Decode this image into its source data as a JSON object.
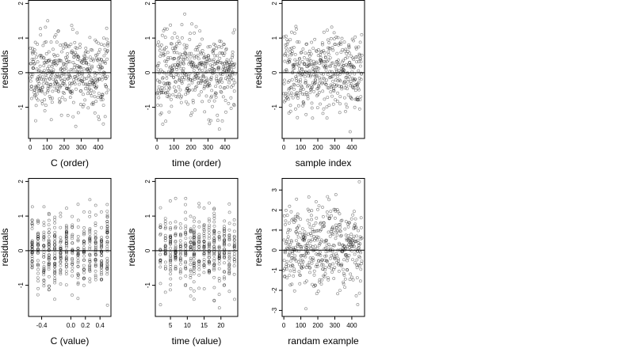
{
  "chart_data": [
    {
      "type": "scatter",
      "xlabel": "C (order)",
      "ylabel": "residuals",
      "xlim": [
        -10,
        475
      ],
      "ylim": [
        -1.9,
        2.1
      ],
      "x_ticks": [
        0,
        100,
        200,
        300,
        400
      ],
      "y_ticks": [
        -1,
        0,
        1,
        2
      ],
      "y_tick_labels": [
        "-1",
        "0",
        "1",
        "2"
      ],
      "reference_line_y": 0,
      "n_points": 460,
      "y_spread": 0.55,
      "x_mode": "index",
      "x_levels": [],
      "seed": 11
    },
    {
      "type": "scatter",
      "xlabel": "time (order)",
      "ylabel": "residuals",
      "xlim": [
        -10,
        475
      ],
      "ylim": [
        -1.9,
        2.1
      ],
      "x_ticks": [
        0,
        100,
        200,
        300,
        400
      ],
      "y_ticks": [
        -1,
        0,
        1,
        2
      ],
      "y_tick_labels": [
        "-1",
        "0",
        "1",
        "2"
      ],
      "reference_line_y": 0,
      "n_points": 460,
      "y_spread": 0.55,
      "x_mode": "index",
      "x_levels": [],
      "seed": 23
    },
    {
      "type": "scatter",
      "xlabel": "sample index",
      "ylabel": "residuals",
      "xlim": [
        -10,
        475
      ],
      "ylim": [
        -1.9,
        2.1
      ],
      "x_ticks": [
        0,
        100,
        200,
        300,
        400
      ],
      "y_ticks": [
        -1,
        0,
        1,
        2
      ],
      "y_tick_labels": [
        "-1",
        "0",
        "1",
        "2"
      ],
      "reference_line_y": 0,
      "n_points": 460,
      "y_spread": 0.55,
      "x_mode": "index",
      "x_levels": [],
      "seed": 37
    },
    {
      "type": "scatter",
      "xlabel": "C (value)",
      "ylabel": "residuals",
      "xlim": [
        -0.58,
        0.55
      ],
      "ylim": [
        -1.9,
        2.1
      ],
      "x_ticks": [
        -0.4,
        0.0,
        0.2,
        0.4
      ],
      "x_tick_labels": [
        "-0.4",
        "0.0",
        "0.2",
        "0.4"
      ],
      "y_ticks": [
        -1,
        0,
        1,
        2
      ],
      "y_tick_labels": [
        "-1",
        "0",
        "1",
        "2"
      ],
      "reference_line_y": 0,
      "n_points": 460,
      "y_spread": 0.55,
      "x_mode": "levels",
      "x_levels": [
        -0.53,
        -0.45,
        -0.37,
        -0.3,
        -0.22,
        -0.14,
        -0.06,
        0.02,
        0.1,
        0.18,
        0.26,
        0.34,
        0.42,
        0.5
      ],
      "seed": 41
    },
    {
      "type": "scatter",
      "xlabel": "time (value)",
      "ylabel": "residuals",
      "xlim": [
        0.5,
        25
      ],
      "ylim": [
        -1.9,
        2.1
      ],
      "x_ticks": [
        5,
        10,
        15,
        20
      ],
      "y_ticks": [
        -1,
        0,
        1,
        2
      ],
      "y_tick_labels": [
        "-1",
        "0",
        "1",
        "2"
      ],
      "reference_line_y": 0,
      "n_points": 460,
      "y_spread": 0.55,
      "x_mode": "levels",
      "x_levels": [
        2,
        3.5,
        5,
        6.5,
        8,
        9.5,
        11,
        12,
        13.5,
        15,
        16.5,
        18,
        19.5,
        21,
        22.5,
        24
      ],
      "seed": 53
    },
    {
      "type": "scatter",
      "xlabel": "randam example",
      "ylabel": "residuals",
      "xlim": [
        -10,
        475
      ],
      "ylim": [
        -3.3,
        3.6
      ],
      "x_ticks": [
        0,
        100,
        200,
        300,
        400
      ],
      "y_ticks": [
        -3,
        -2,
        -1,
        0,
        1,
        2,
        3
      ],
      "y_tick_labels": [
        "-3",
        "-2",
        "-1",
        "0",
        "1",
        "2",
        "3"
      ],
      "reference_line_y": 0,
      "n_points": 460,
      "y_spread": 1.0,
      "x_mode": "index",
      "x_levels": [],
      "seed": 67
    }
  ]
}
